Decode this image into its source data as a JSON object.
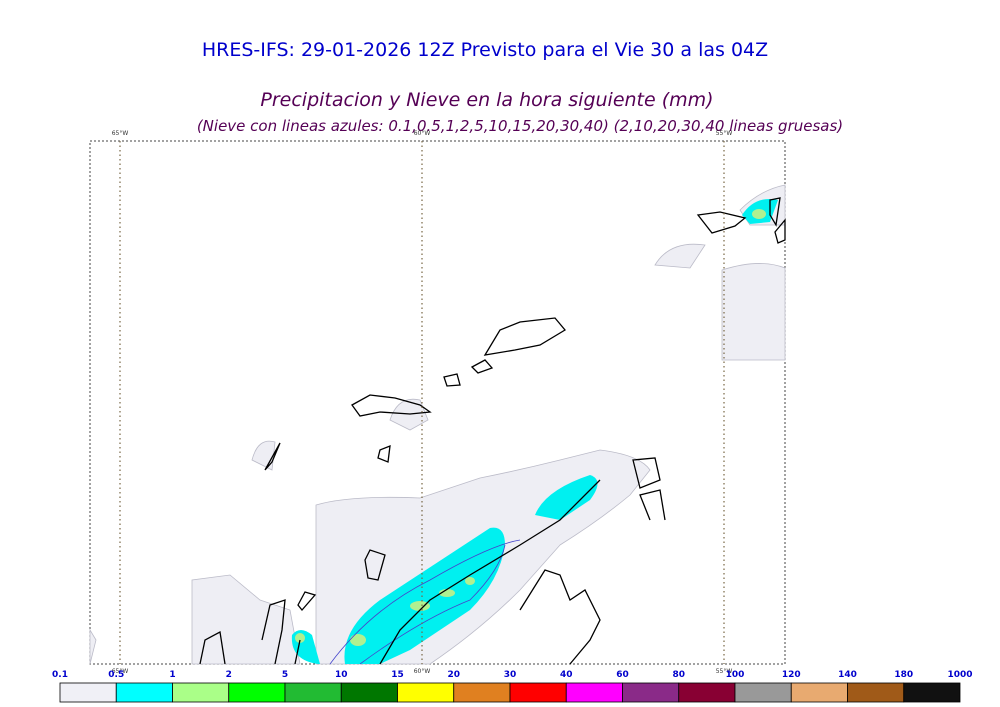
{
  "header": {
    "title": "HRES-IFS: 29-01-2026 12Z Previsto para el Vie 30 a las 04Z",
    "subtitle": "Precipitacion y Nieve en la hora siguiente (mm)",
    "note": "(Nieve con lineas azules: 0.1,0.5,1,2,5,10,15,20,30,40)  (2,10,20,30,40 lineas gruesas)"
  },
  "map": {
    "meridians": [
      "65°W",
      "60°W",
      "55°W"
    ]
  },
  "colorbar": {
    "labels": [
      "0.1",
      "0.5",
      "1",
      "2",
      "5",
      "10",
      "15",
      "20",
      "30",
      "40",
      "60",
      "80",
      "100",
      "120",
      "140",
      "180",
      "1000"
    ],
    "colors": [
      "#f0f0f6",
      "#00ffff",
      "#aaff88",
      "#00ff00",
      "#22bb33",
      "#007700",
      "#ffff00",
      "#e08020",
      "#ff0000",
      "#ff00ff",
      "#8a2a88",
      "#880033",
      "#999999",
      "#e8aa70",
      "#a05a18",
      "#111111"
    ]
  }
}
